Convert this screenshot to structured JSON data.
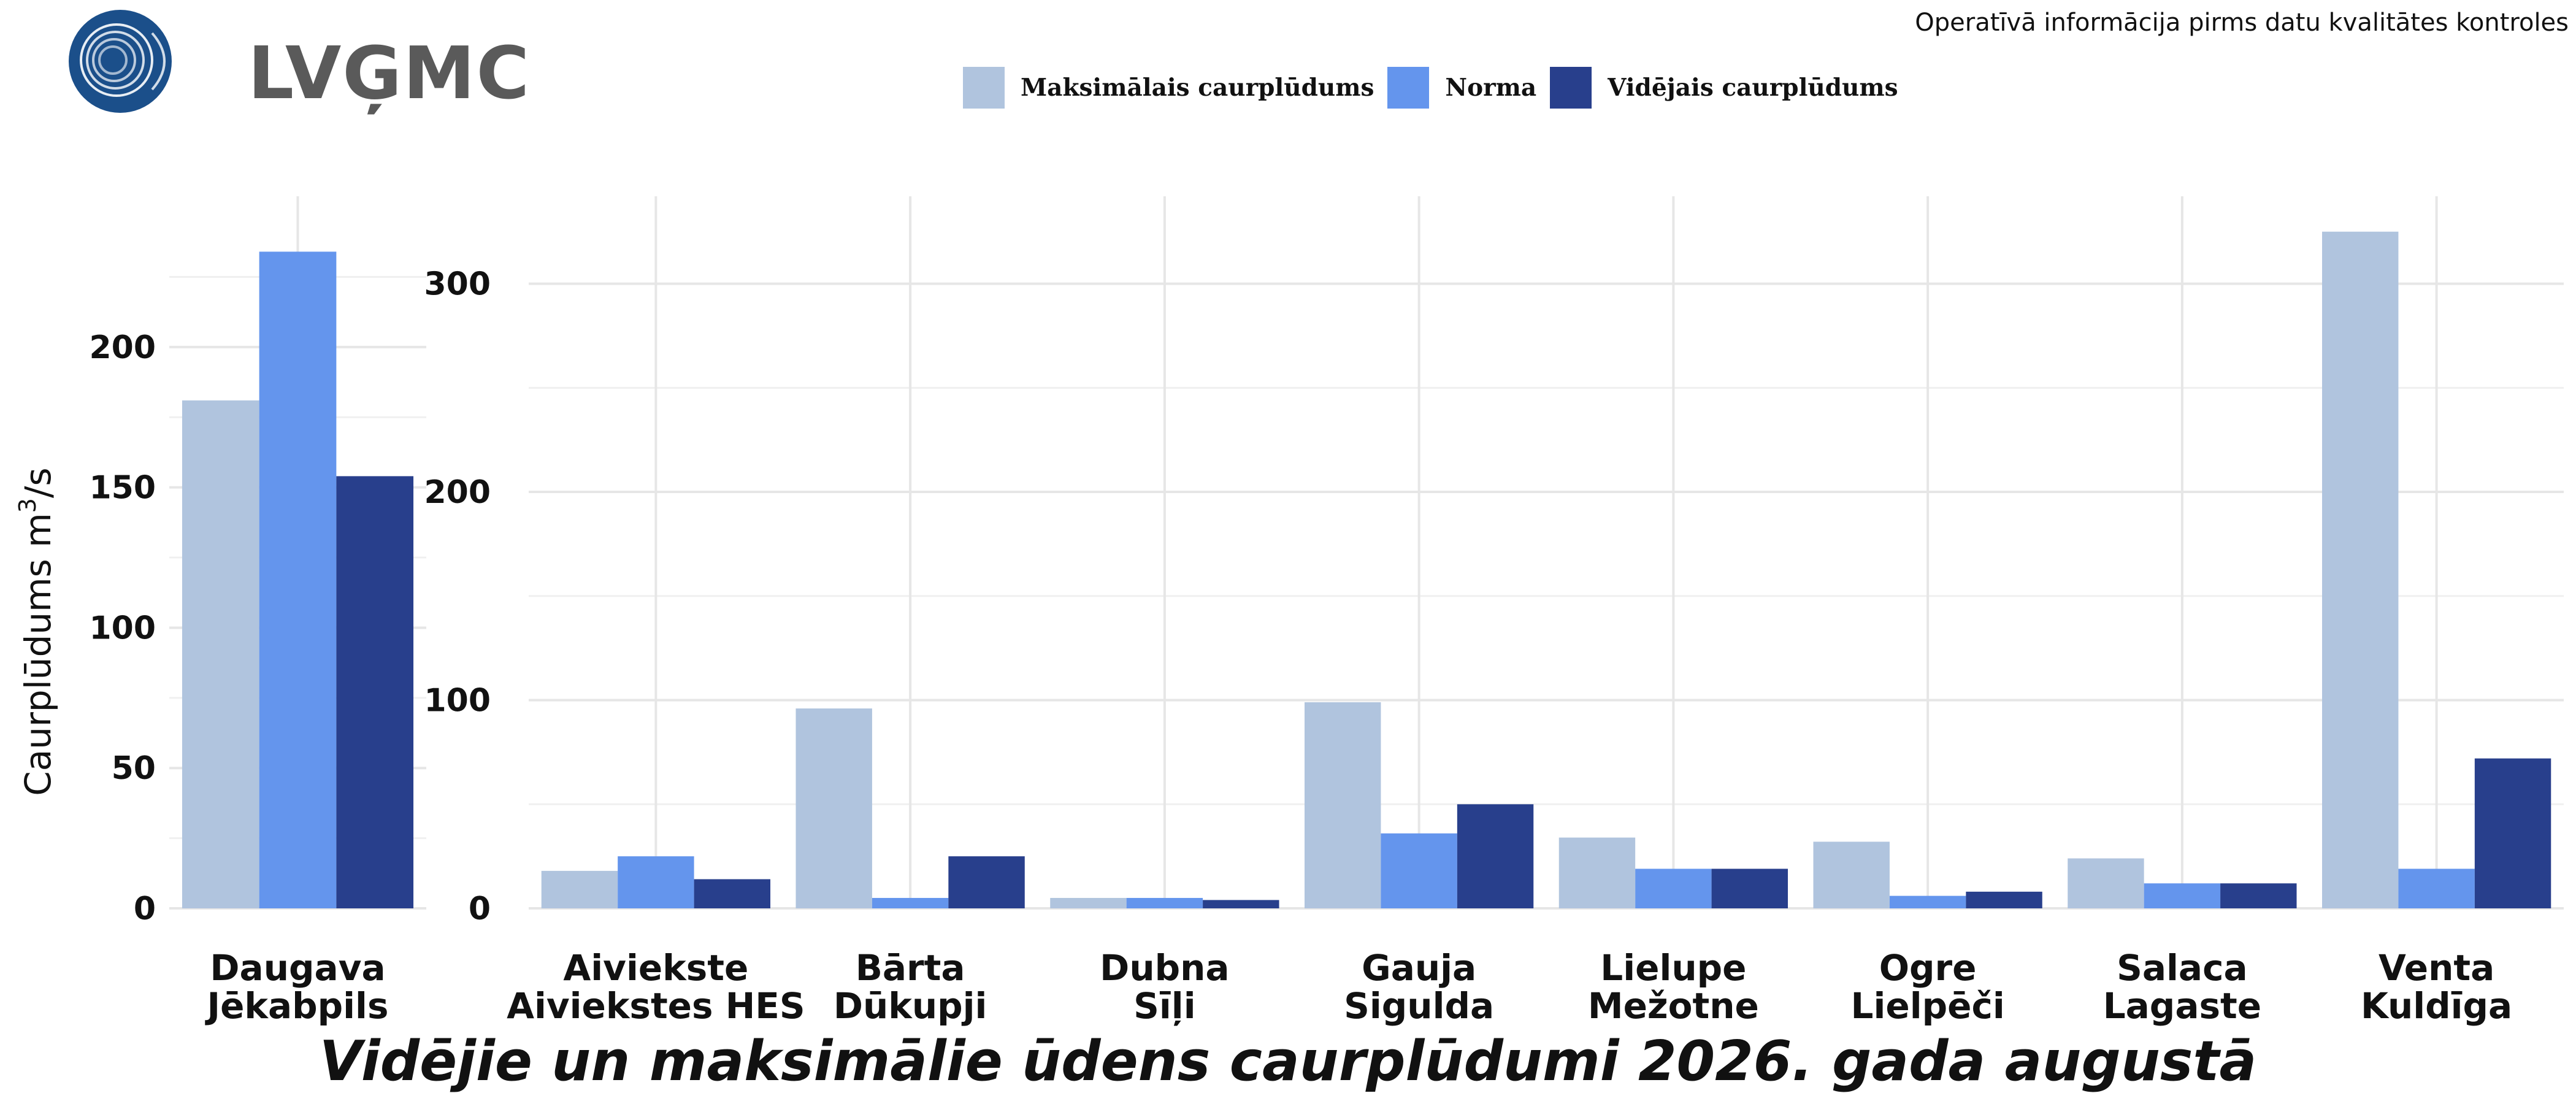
{
  "header": {
    "logo_text": "LVĢMC",
    "notice": "Operatīvā informācija pirms datu kvalitātes kontroles"
  },
  "colors": {
    "max": "#b0c4de",
    "norm": "#6495ed",
    "avg": "#283f8c"
  },
  "legend": [
    {
      "key": "max",
      "label": "Maksimālais caurplūdums"
    },
    {
      "key": "norm",
      "label": "Norma"
    },
    {
      "key": "avg",
      "label": "Vidējais caurplūdums"
    }
  ],
  "chart_data": [
    {
      "type": "bar",
      "title": "Vidējie un maksimālie ūdens caurplūdumi 2026. gada augustā",
      "ylabel": "Caurplūdums",
      "yunit_base": "m",
      "yunit_sup": "3",
      "yunit_rest": "/s",
      "ylim": [
        0,
        245
      ],
      "yticks": [
        0,
        50,
        100,
        150,
        200
      ],
      "grid": true,
      "categories": [
        [
          "Daugava",
          "Jēkabpils"
        ]
      ],
      "series": [
        {
          "name": "Maksimālais caurplūdums",
          "key": "max",
          "values": [
            181
          ]
        },
        {
          "name": "Norma",
          "key": "norm",
          "values": [
            234
          ]
        },
        {
          "name": "Vidējais caurplūdums",
          "key": "avg",
          "values": [
            154
          ]
        }
      ]
    },
    {
      "type": "bar",
      "ylim": [
        0,
        342
      ],
      "yticks": [
        0,
        100,
        200,
        300
      ],
      "grid": true,
      "categories": [
        [
          "Aiviekste",
          "Aiviekstes HES"
        ],
        [
          "Bārta",
          "Dūkupji"
        ],
        [
          "Dubna",
          "Sīļi"
        ],
        [
          "Gauja",
          "Sigulda"
        ],
        [
          "Lielupe",
          "Mežotne"
        ],
        [
          "Ogre",
          "Lielpēči"
        ],
        [
          "Salaca",
          "Lagaste"
        ],
        [
          "Venta",
          "Kuldīga"
        ]
      ],
      "series": [
        {
          "name": "Maksimālais caurplūdums",
          "key": "max",
          "values": [
            18,
            96,
            5,
            99,
            34,
            32,
            24,
            325
          ]
        },
        {
          "name": "Norma",
          "key": "norm",
          "values": [
            25,
            5,
            5,
            36,
            19,
            6,
            12,
            19
          ]
        },
        {
          "name": "Vidējais caurplūdums",
          "key": "avg",
          "values": [
            14,
            25,
            4,
            50,
            19,
            8,
            12,
            72
          ]
        }
      ]
    }
  ]
}
